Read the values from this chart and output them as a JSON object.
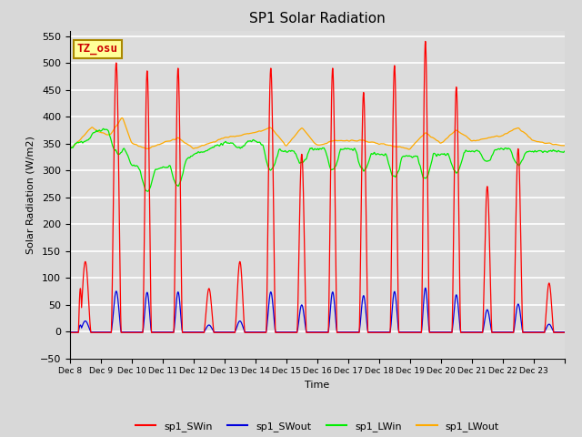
{
  "title": "SP1 Solar Radiation",
  "ylabel": "Solar Radiation (W/m2)",
  "xlabel": "Time",
  "ylim": [
    -50,
    560
  ],
  "yticks": [
    -50,
    0,
    50,
    100,
    150,
    200,
    250,
    300,
    350,
    400,
    450,
    500,
    550
  ],
  "bg_color": "#dcdcdc",
  "ax_bg_color": "#dcdcdc",
  "colors": {
    "SWin": "#ff0000",
    "SWout": "#0000dd",
    "LWin": "#00ee00",
    "LWout": "#ffaa00"
  },
  "legend_labels": [
    "sp1_SWin",
    "sp1_SWout",
    "sp1_LWin",
    "sp1_LWout"
  ],
  "annotation": "TZ_osu",
  "annotation_color": "#cc0000",
  "annotation_bg": "#ffff99",
  "xtick_labels": [
    "Dec 8",
    "Dec 9",
    "Dec 10",
    "Dec 11",
    "Dec 12",
    "Dec 13",
    "Dec 14",
    "Dec 15",
    "Dec 16",
    "Dec 17",
    "Dec 18",
    "Dec 19",
    "Dec 20",
    "Dec 21",
    "Dec 22",
    "Dec 23"
  ],
  "n_days": 16,
  "start_day": 8
}
